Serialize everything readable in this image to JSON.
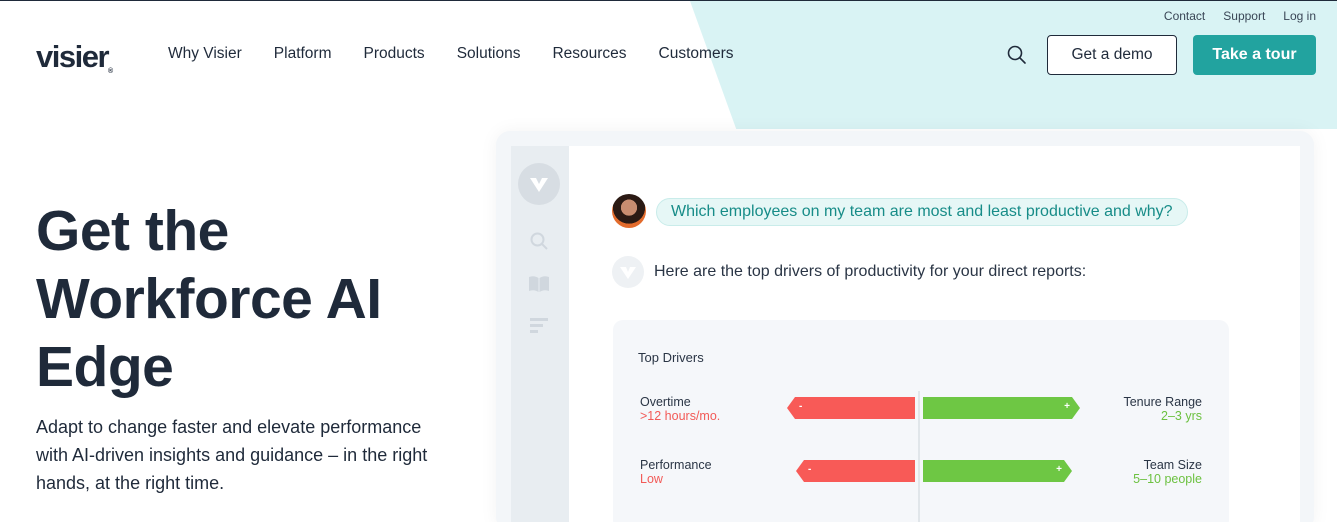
{
  "utility_nav": [
    "Contact",
    "Support",
    "Log in"
  ],
  "brand": {
    "name": "visier",
    "registered": "®"
  },
  "main_nav": [
    "Why Visier",
    "Platform",
    "Products",
    "Solutions",
    "Resources",
    "Customers"
  ],
  "header_actions": {
    "demo_label": "Get a demo",
    "tour_label": "Take a tour",
    "search_icon": "search-icon"
  },
  "hero": {
    "title": "Get the Workforce AI Edge",
    "subtitle": "Adapt to change faster and elevate performance with AI-driven insights and guidance – in the right hands, at the right time."
  },
  "chat": {
    "question": "Which employees on my team are most and least productive and why?",
    "answer": "Here are the top drivers of productivity for your direct reports:"
  },
  "top_drivers": {
    "title": "Top Drivers",
    "rows": [
      {
        "neg_label": "Overtime",
        "neg_value": ">12 hours/mo.",
        "pos_label": "Tenure Range",
        "pos_value": "2–3 yrs",
        "neg_sign": "-",
        "pos_sign": "+"
      },
      {
        "neg_label": "Performance",
        "neg_value": "Low",
        "pos_label": "Team Size",
        "pos_value": "5–10 people",
        "neg_sign": "-",
        "pos_sign": "+"
      }
    ]
  },
  "colors": {
    "accent": "#22a39f",
    "negative": "#f85a57",
    "positive": "#6ec744",
    "text": "#1f2a3a"
  }
}
